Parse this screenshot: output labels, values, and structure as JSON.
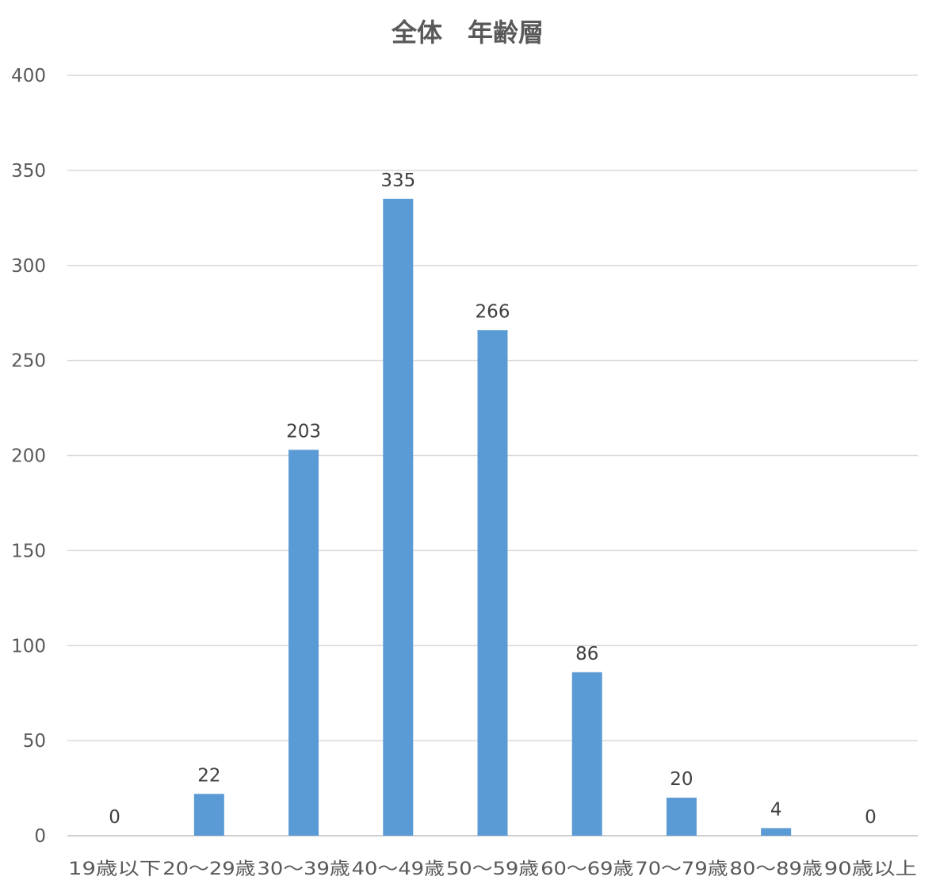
{
  "chart_data": {
    "type": "bar",
    "title": "全体　年齢層",
    "categories": [
      "19歳以下",
      "20～29歳",
      "30～39歳",
      "40～49歳",
      "50～59歳",
      "60～69歳",
      "70～79歳",
      "80～89歳",
      "90歳以上"
    ],
    "series": [
      {
        "values": [
          0,
          22,
          203,
          335,
          266,
          86,
          20,
          4,
          0
        ],
        "color": "#5b9bd5"
      }
    ],
    "ylim": [
      0,
      400
    ],
    "y_ticks": [
      0,
      50,
      100,
      150,
      200,
      250,
      300,
      350,
      400
    ],
    "grid": true,
    "legend": "none",
    "data_labels": true
  }
}
